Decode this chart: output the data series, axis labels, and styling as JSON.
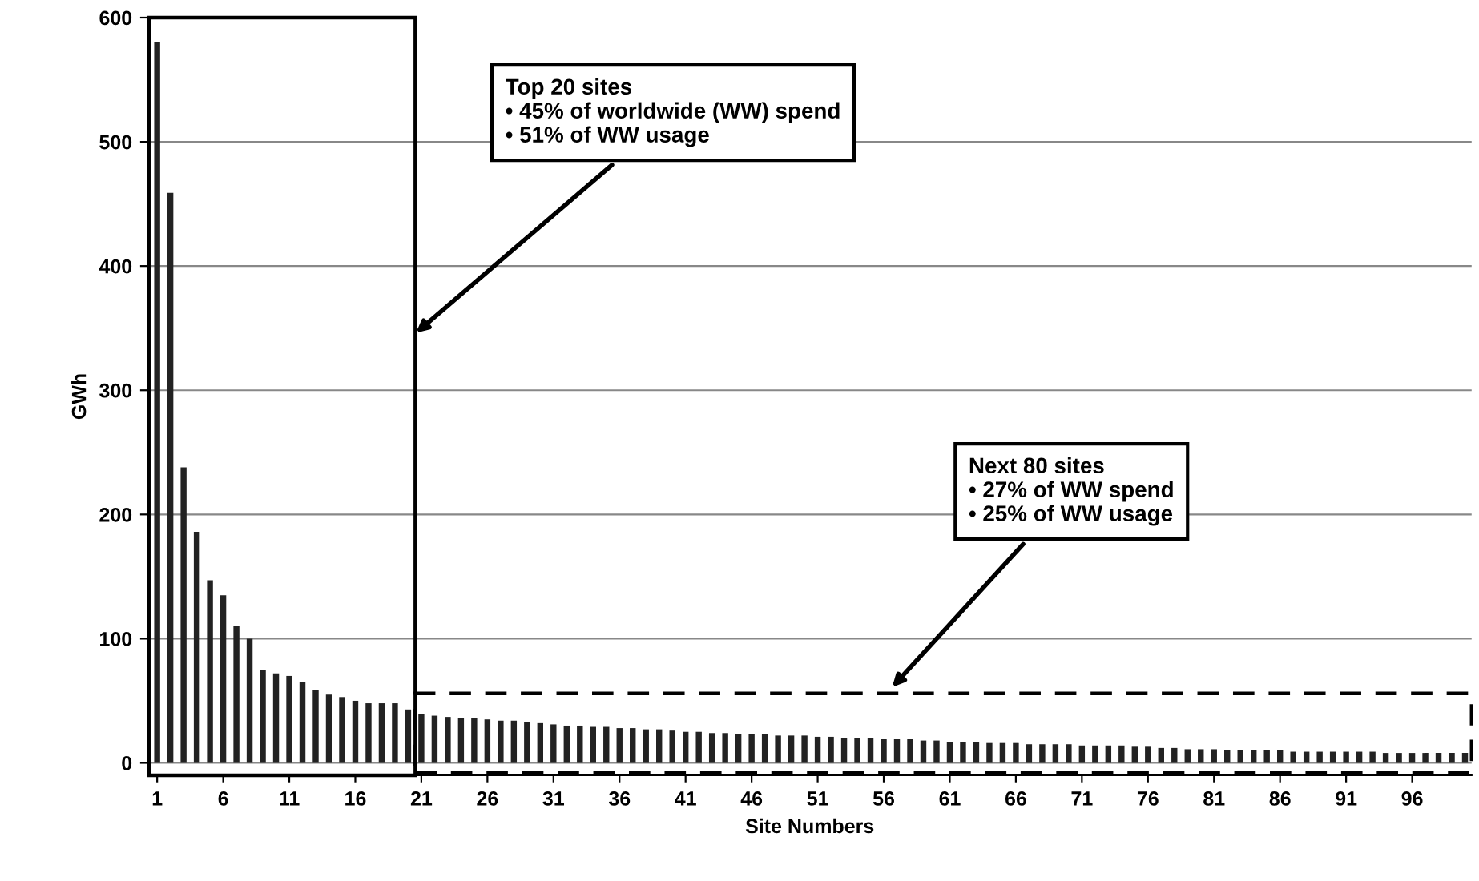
{
  "chart_data": {
    "type": "bar",
    "xlabel": "Site Numbers",
    "ylabel": "GWh",
    "categories": [
      "1",
      null,
      null,
      null,
      null,
      "6",
      null,
      null,
      null,
      null,
      "11",
      null,
      null,
      null,
      null,
      "16",
      null,
      null,
      null,
      null,
      "21",
      null,
      null,
      null,
      null,
      "26",
      null,
      null,
      null,
      null,
      "31",
      null,
      null,
      null,
      null,
      "36",
      null,
      null,
      null,
      null,
      "41",
      null,
      null,
      null,
      null,
      "46",
      null,
      null,
      null,
      null,
      "51",
      null,
      null,
      null,
      null,
      "56",
      null,
      null,
      null,
      null,
      "61",
      null,
      null,
      null,
      null,
      "66",
      null,
      null,
      null,
      null,
      "71",
      null,
      null,
      null,
      null,
      "76",
      null,
      null,
      null,
      null,
      "81",
      null,
      null,
      null,
      null,
      "86",
      null,
      null,
      null,
      null,
      "91",
      null,
      null,
      null,
      null,
      "96",
      null,
      null,
      null,
      null
    ],
    "values": [
      580,
      459,
      238,
      186,
      147,
      135,
      110,
      100,
      75,
      72,
      70,
      65,
      59,
      55,
      53,
      50,
      48,
      48,
      48,
      43,
      39,
      38,
      37,
      36,
      36,
      35,
      34,
      34,
      33,
      32,
      31,
      30,
      30,
      29,
      29,
      28,
      28,
      27,
      27,
      26,
      25,
      25,
      24,
      24,
      23,
      23,
      23,
      22,
      22,
      22,
      21,
      21,
      20,
      20,
      20,
      19,
      19,
      19,
      18,
      18,
      17,
      17,
      17,
      16,
      16,
      16,
      15,
      15,
      15,
      15,
      14,
      14,
      14,
      14,
      13,
      13,
      12,
      12,
      11,
      11,
      11,
      10,
      10,
      10,
      10,
      10,
      9,
      9,
      9,
      9,
      9,
      9,
      9,
      8,
      8,
      8,
      8,
      8,
      8,
      8
    ],
    "color": "#222222",
    "ylim": [
      -10,
      600
    ],
    "yticks": [
      0,
      100,
      200,
      300,
      400,
      500,
      600
    ],
    "grid": "y",
    "annotations": [
      "Top 20 sites\n• 45% of worldwide (WW) spend\n• 51% of WW usage",
      "Next 80 sites\n• 27% of WW spend\n• 25% of WW usage"
    ]
  }
}
